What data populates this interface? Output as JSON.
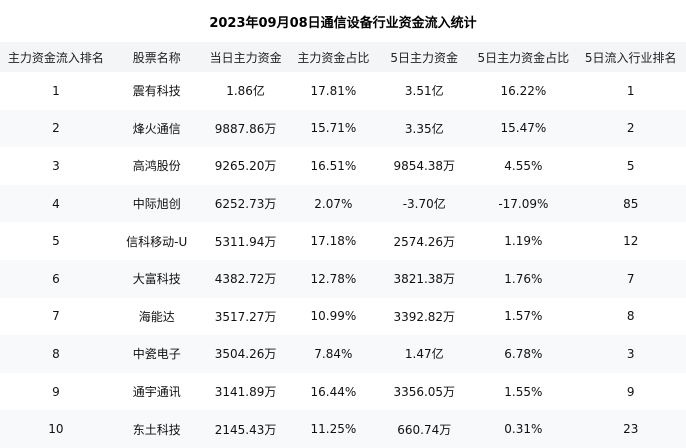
{
  "title": "2023年09月08日通信设备行业资金流入统计",
  "chart_data": {
    "type": "table",
    "title": "2023年09月08日通信设备行业资金流入统计",
    "columns": [
      "主力资金流入排名",
      "股票名称",
      "当日主力资金",
      "主力资金占比",
      "5日主力资金",
      "5日主力资金占比",
      "5日流入行业排名"
    ],
    "rows": [
      [
        "1",
        "震有科技",
        "1.86亿",
        "17.81%",
        "3.51亿",
        "16.22%",
        "1"
      ],
      [
        "2",
        "烽火通信",
        "9887.86万",
        "15.71%",
        "3.35亿",
        "15.47%",
        "2"
      ],
      [
        "3",
        "高鸿股份",
        "9265.20万",
        "16.51%",
        "9854.38万",
        "4.55%",
        "5"
      ],
      [
        "4",
        "中际旭创",
        "6252.73万",
        "2.07%",
        "-3.70亿",
        "-17.09%",
        "85"
      ],
      [
        "5",
        "信科移动-U",
        "5311.94万",
        "17.18%",
        "2574.26万",
        "1.19%",
        "12"
      ],
      [
        "6",
        "大富科技",
        "4382.72万",
        "12.78%",
        "3821.38万",
        "1.76%",
        "7"
      ],
      [
        "7",
        "海能达",
        "3517.27万",
        "10.99%",
        "3392.82万",
        "1.57%",
        "8"
      ],
      [
        "8",
        "中瓷电子",
        "3504.26万",
        "7.84%",
        "1.47亿",
        "6.78%",
        "3"
      ],
      [
        "9",
        "通宇通讯",
        "3141.89万",
        "16.44%",
        "3356.05万",
        "1.55%",
        "9"
      ],
      [
        "10",
        "东土科技",
        "2145.43万",
        "11.25%",
        "660.74万",
        "0.31%",
        "23"
      ]
    ],
    "layout": {
      "grid": false,
      "striped_rows": true,
      "header_background": "#f4f5f7",
      "stripe_background": "#f8f9fa"
    }
  }
}
